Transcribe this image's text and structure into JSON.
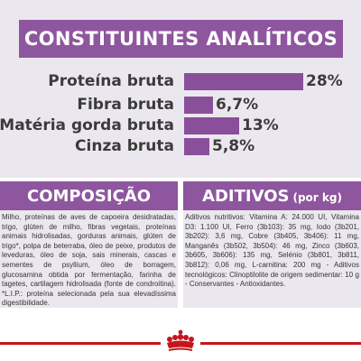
{
  "analytics": {
    "title": "CONSTITUINTES ANALÍTICOS",
    "rows": [
      {
        "label": "Proteína bruta",
        "value": "28%",
        "fraction": 1.0
      },
      {
        "label": "Fibra bruta",
        "value": "6,7%",
        "fraction": 0.24
      },
      {
        "label": "Matéria gorda bruta",
        "value": "13%",
        "fraction": 0.46
      },
      {
        "label": "Cinza bruta",
        "value": "5,8%",
        "fraction": 0.21
      }
    ]
  },
  "composition": {
    "title": "COMPOSIÇÃO",
    "text": "Milho, proteínas de aves de capoeira desidratadas, trigo, glúten de milho, fibras vegetais, proteínas animais hidrolisadas, gorduras animais, glúten de trigo*, polpa de beterraba, óleo de peixe, produtos de leveduras, óleo de soja, sais minerais, cascas e sementes de psyllium, óleo de borragem, glucosamina obtida por fermentação, farinha de tagetes, cartilagem hidrolisada (fonte de condroitina). *L.I.P.: proteína selecionada pela sua elevadíssima digestibilidade."
  },
  "additives": {
    "title": "ADITIVOS",
    "unit": "(por kg)",
    "text": "Aditivos nutritivos: Vitamina A: 24.000 UI, Vitamina D3: 1.100 UI, Ferro (3b103): 35 mg, Iodo (3b201, 3b202): 3,6 mg, Cobre (3b405, 3b406): 11 mg, Manganês (3b502, 3b504): 46 mg, Zinco (3b603, 3b605, 3b606): 135 mg, Selénio (3b801, 3b811, 3b812): 0,06 mg, L-carnitina: 200 mg - Aditivos tecnológicos: Clinoptilolite de origem sedimentar: 10 g - Conservantes - Antioxidantes."
  },
  "colors": {
    "purple": "#8e569e",
    "panel": "#ebe7ef",
    "red": "#c4161c"
  }
}
